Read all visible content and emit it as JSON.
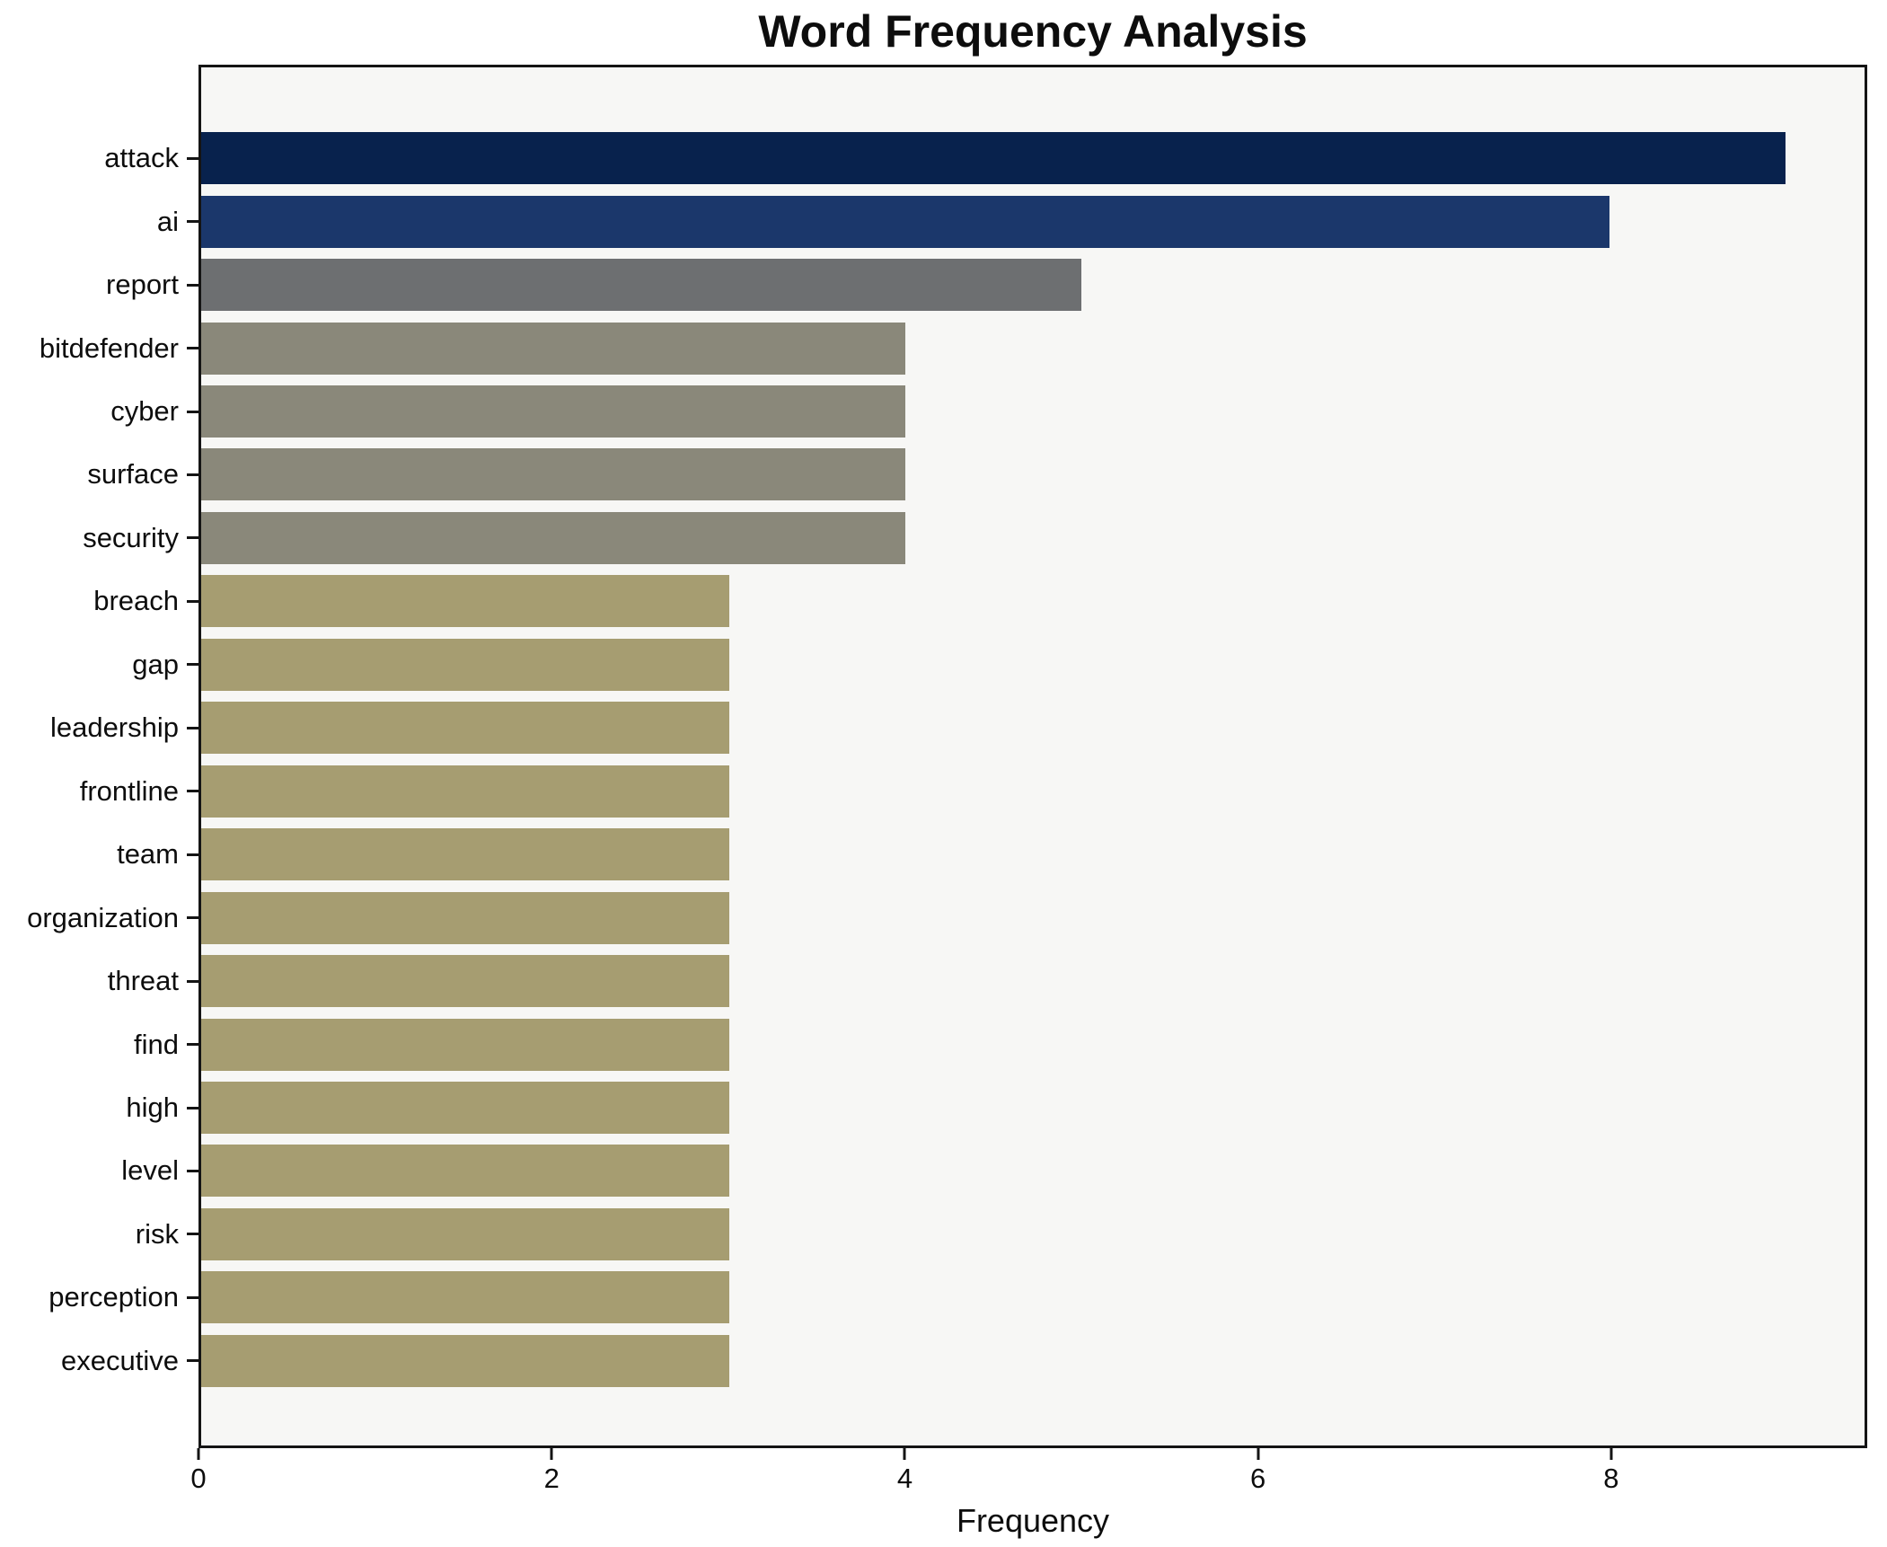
{
  "chart_data": {
    "type": "bar",
    "orientation": "horizontal",
    "title": "Word Frequency Analysis",
    "xlabel": "Frequency",
    "ylabel": "",
    "categories": [
      "attack",
      "ai",
      "report",
      "bitdefender",
      "cyber",
      "surface",
      "security",
      "breach",
      "gap",
      "leadership",
      "frontline",
      "team",
      "organization",
      "threat",
      "find",
      "high",
      "level",
      "risk",
      "perception",
      "executive"
    ],
    "values": [
      9,
      8,
      5,
      4,
      4,
      4,
      4,
      3,
      3,
      3,
      3,
      3,
      3,
      3,
      3,
      3,
      3,
      3,
      3,
      3
    ],
    "bar_colors": [
      "#08224d",
      "#1b376b",
      "#6d6f71",
      "#8a887a",
      "#8a887a",
      "#8a887a",
      "#8a887a",
      "#a69d71",
      "#a69d71",
      "#a69d71",
      "#a69d71",
      "#a69d71",
      "#a69d71",
      "#a69d71",
      "#a69d71",
      "#a69d71",
      "#a69d71",
      "#a69d71",
      "#a69d71",
      "#a69d71"
    ],
    "x_ticks": [
      0,
      2,
      4,
      6,
      8
    ],
    "x_tick_labels": [
      "0",
      "2",
      "4",
      "6",
      "8"
    ],
    "xlim": [
      0,
      9.45
    ],
    "grid": false,
    "legend": "none",
    "plot_background": "#f7f7f5",
    "figure_background": "#ffffff",
    "spine_color": "#141414",
    "text_color": "#0d0d0d"
  }
}
